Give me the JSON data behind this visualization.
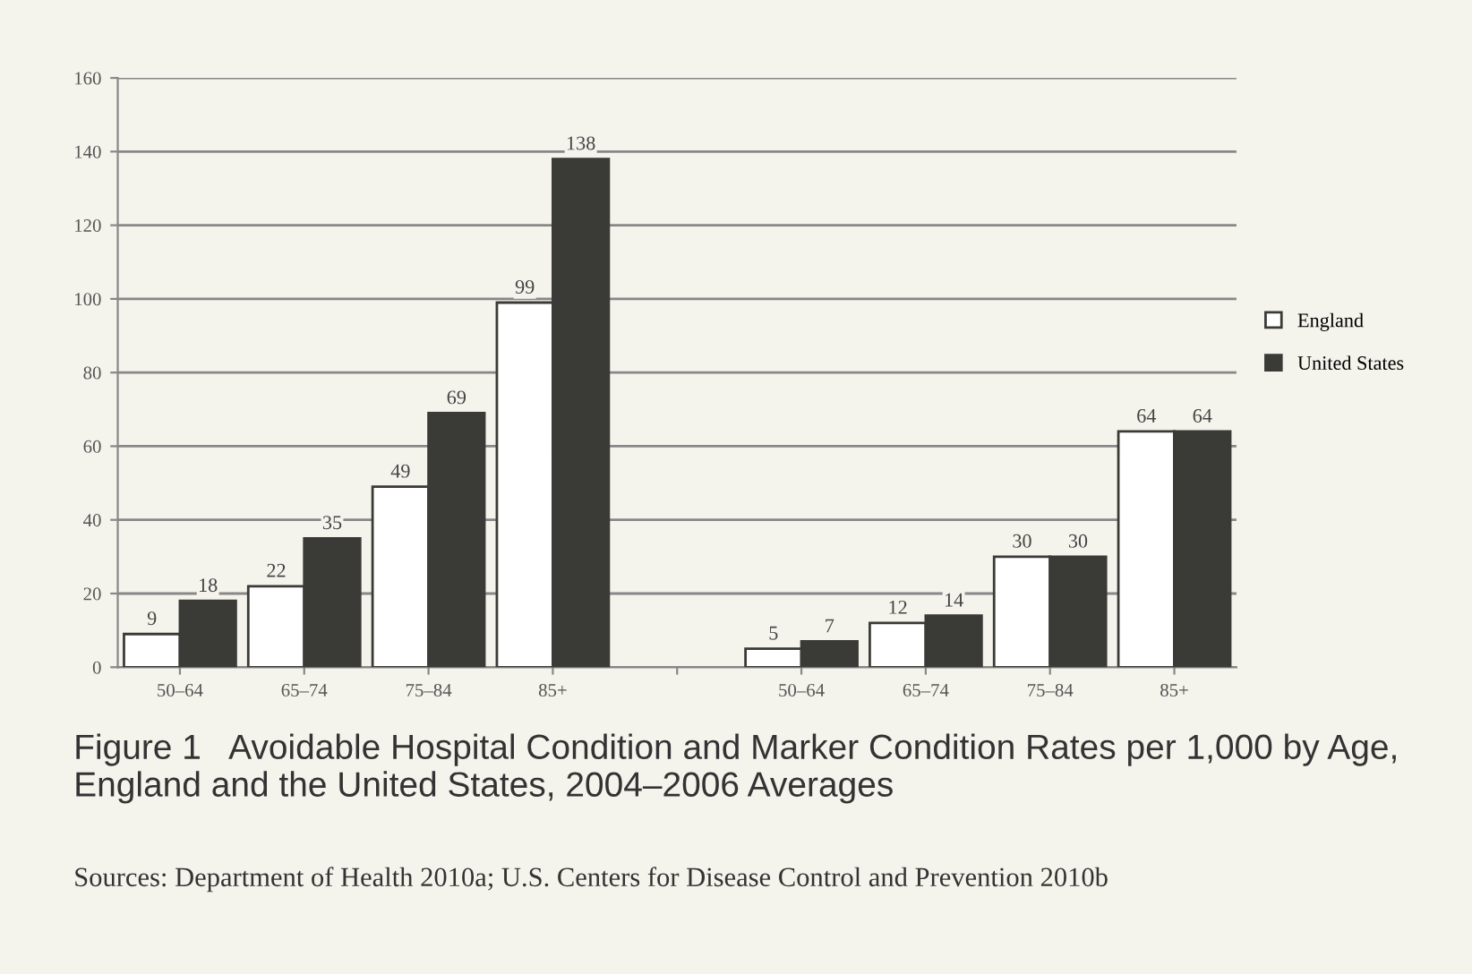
{
  "chart_data": {
    "type": "bar",
    "title": "Figure 1   Avoidable Hospital Condition and Marker Condition Rates per 1,000 by Age, England and the United States, 2004–2006 Averages",
    "annotations": [
      "Sources: Department of Health 2010a; U.S. Centers for Disease Control and Prevention 2010b"
    ],
    "categories": [
      "50–64",
      "65–74",
      "75–84",
      "85+",
      null,
      "50–64",
      "65–74",
      "75–84",
      "85+"
    ],
    "series": [
      {
        "name": "England",
        "color": "#ffffff",
        "values": [
          9,
          22,
          49,
          99,
          null,
          5,
          12,
          30,
          64
        ]
      },
      {
        "name": "United States",
        "color": "#3a3a36",
        "values": [
          18,
          35,
          69,
          138,
          null,
          7,
          14,
          30,
          64
        ]
      }
    ],
    "ylim": [
      0,
      160
    ],
    "yticks": [
      0,
      20,
      40,
      60,
      80,
      100,
      120,
      140,
      160
    ],
    "grid": "y",
    "legend": "right",
    "data_labels": true
  }
}
